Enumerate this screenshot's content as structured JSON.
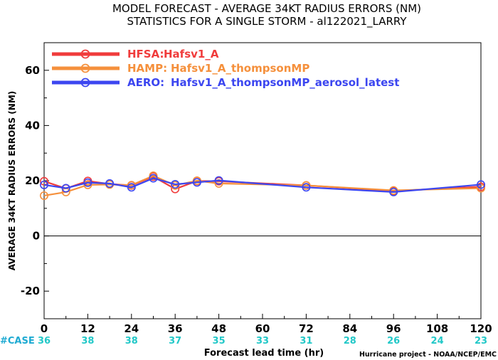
{
  "chart_data": {
    "type": "line",
    "title_lines": [
      "MODEL FORECAST - AVERAGE 34KT RADIUS ERRORS (NM)",
      "STATISTICS FOR A SINGLE STORM - al122021_LARRY"
    ],
    "xlabel": "Forecast lead time (hr)",
    "ylabel": "AVERAGE 34KT RADIUS ERRORS (NM)",
    "xlim": [
      0,
      120
    ],
    "ylim": [
      -30,
      70
    ],
    "xticks": [
      0,
      12,
      24,
      36,
      48,
      60,
      72,
      84,
      96,
      108,
      120
    ],
    "yticks": [
      -20,
      0,
      20,
      40,
      60
    ],
    "grid": false,
    "legend_position": "top-left",
    "case_label": "#CASE",
    "case_counts": [
      "36",
      "38",
      "38",
      "37",
      "35",
      "33",
      "31",
      "28",
      "26",
      "24",
      "23"
    ],
    "credit": "Hurricane project - NOAA/NCEP/EMC",
    "series": [
      {
        "name": "HFSA:",
        "label": "Hafsv1_A",
        "color": "#f03c3c",
        "x": [
          0,
          6,
          12,
          18,
          24,
          30,
          36,
          42,
          48,
          72,
          96,
          120
        ],
        "y": [
          19.8,
          17.2,
          19.9,
          18.8,
          18.3,
          21.5,
          17.0,
          19.9,
          19.8,
          18.3,
          16.3,
          17.8
        ]
      },
      {
        "name": "HAMP:",
        "label": "Hafsv1_A_thompsonMP",
        "color": "#f5903c",
        "x": [
          0,
          6,
          12,
          18,
          24,
          30,
          36,
          42,
          48,
          72,
          96,
          120
        ],
        "y": [
          14.6,
          15.9,
          18.5,
          18.6,
          18.4,
          21.8,
          18.3,
          20.0,
          19.0,
          18.3,
          16.5,
          17.3
        ]
      },
      {
        "name": "AERO:",
        "label": "Hafsv1_A_thompsonMP_aerosol_latest",
        "color": "#3c46f0",
        "x": [
          0,
          6,
          12,
          18,
          24,
          30,
          36,
          42,
          48,
          72,
          96,
          120
        ],
        "y": [
          18.5,
          17.3,
          19.3,
          19.0,
          17.6,
          20.9,
          18.7,
          19.4,
          20.1,
          17.6,
          15.9,
          18.6
        ]
      }
    ]
  },
  "colors": {
    "case_label": "#1eaad2",
    "case_counts": "#22c8c8",
    "zero_line": "#000000"
  }
}
